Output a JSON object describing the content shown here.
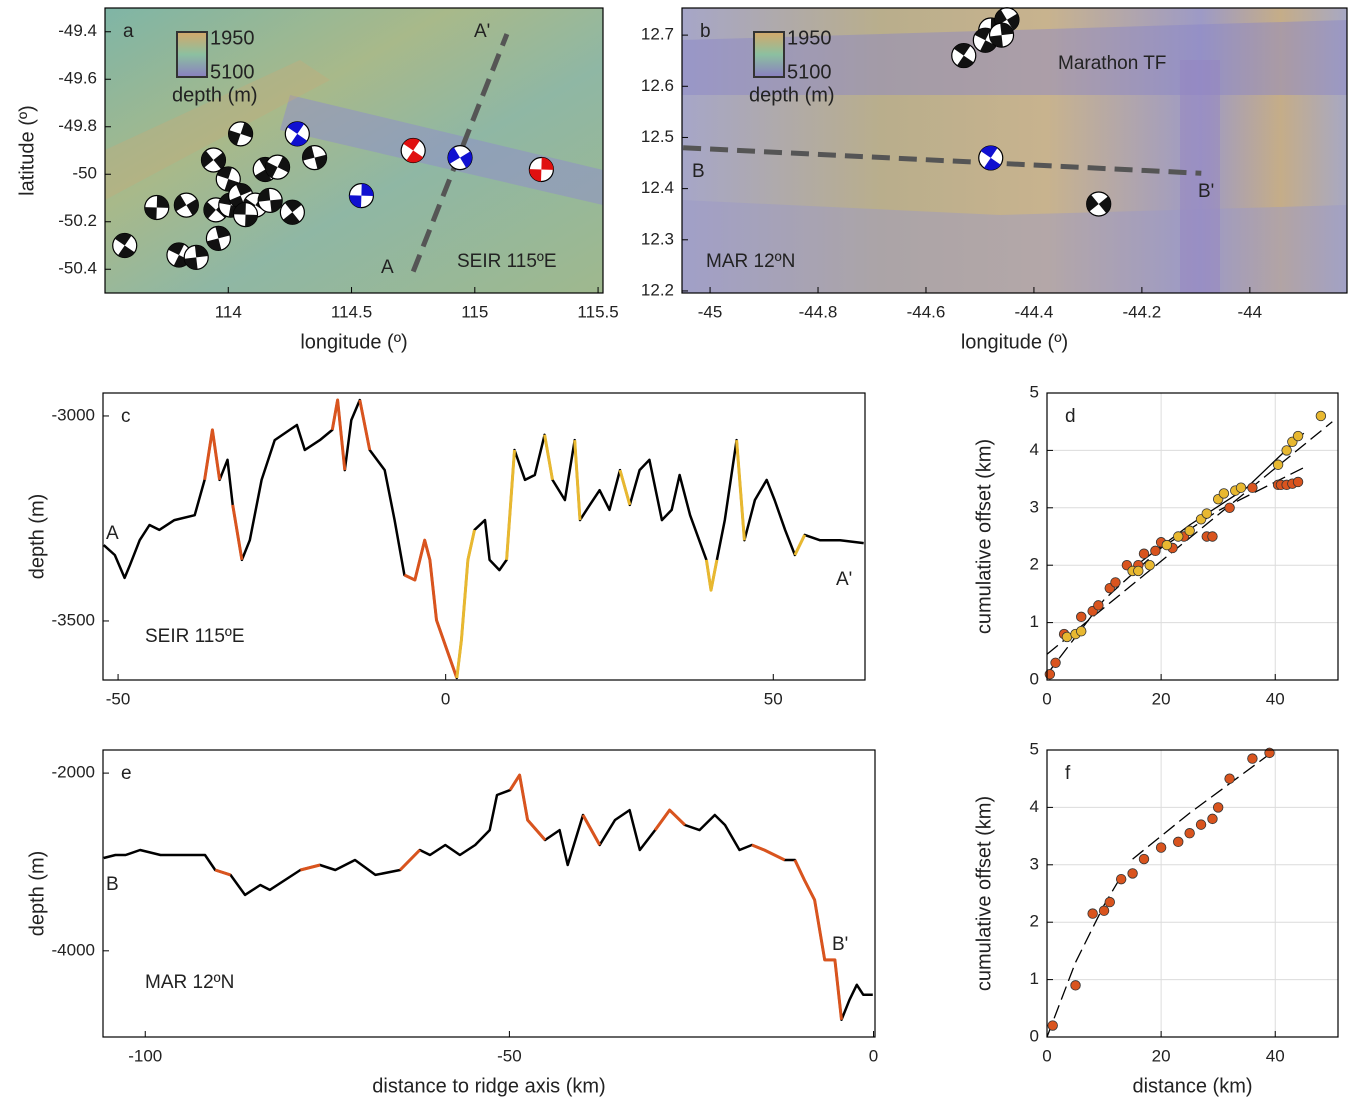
{
  "chart_data": [
    {
      "type": "map",
      "panel_label": "a",
      "xlabel": "longitude (º)",
      "ylabel": "latitude (º)",
      "xlim": [
        113.5,
        115.52
      ],
      "ylim": [
        -50.5,
        -49.3
      ],
      "xticks": [
        114,
        114.5,
        115,
        115.5
      ],
      "yticks": [
        -49.4,
        -49.6,
        -49.8,
        -50,
        -50.2,
        -50.4
      ],
      "colorbar": {
        "ticks": [
          1950,
          5100
        ],
        "title": "depth (m)"
      },
      "annotations": [
        "A'",
        "A",
        "SEIR  115ºE"
      ],
      "profile": {
        "x": [
          114.75,
          115.13
        ],
        "values": [
          -50.41,
          -49.41
        ]
      },
      "series": [
        {
          "color": "#111111",
          "x": [
            113.58,
            113.71,
            113.83,
            113.8,
            113.87,
            113.94,
            114.0,
            113.96,
            113.95,
            114.01,
            114.05,
            114.11,
            114.07,
            114.15,
            114.2,
            114.17,
            114.26,
            114.05,
            114.35
          ],
          "values": [
            -50.3,
            -50.14,
            -50.13,
            -50.34,
            -50.35,
            -49.94,
            -50.02,
            -50.27,
            -50.15,
            -50.13,
            -50.09,
            -50.13,
            -50.17,
            -49.98,
            -49.97,
            -50.11,
            -50.16,
            -49.83,
            -49.93
          ]
        },
        {
          "color": "#1010d0",
          "x": [
            114.28,
            114.54,
            114.94
          ],
          "values": [
            -49.83,
            -50.09,
            -49.93
          ]
        },
        {
          "color": "#e01010",
          "x": [
            114.75,
            115.27
          ],
          "values": [
            -49.9,
            -49.98
          ]
        }
      ]
    },
    {
      "type": "map",
      "panel_label": "b",
      "xlabel": "longitude (º)",
      "xlim": [
        -45.052,
        -43.82
      ],
      "ylim": [
        12.196,
        12.753
      ],
      "xticks": [
        -45,
        -44.8,
        -44.6,
        -44.4,
        -44.2,
        -44
      ],
      "yticks": [
        12.2,
        12.3,
        12.4,
        12.5,
        12.6,
        12.7
      ],
      "colorbar": {
        "ticks": [
          1950,
          5100
        ],
        "title": "depth (m)"
      },
      "annotations": [
        "Marathon TF",
        "B",
        "B'",
        "MAR  12ºN"
      ],
      "profile": {
        "x": [
          -45.05,
          -44.09
        ],
        "values": [
          12.48,
          12.43
        ]
      },
      "series": [
        {
          "color": "#111111",
          "x": [
            -44.53,
            -44.48,
            -44.45,
            -44.49,
            -44.46,
            -44.28
          ],
          "values": [
            12.66,
            12.71,
            12.73,
            12.69,
            12.7,
            12.37
          ]
        },
        {
          "color": "#1010d0",
          "x": [
            -44.48
          ],
          "values": [
            12.46
          ]
        }
      ]
    },
    {
      "type": "line",
      "panel_label": "c",
      "ylabel": "depth (m)",
      "xlim": [
        -52.3,
        64
      ],
      "ylim": [
        -3644,
        -2944
      ],
      "xticks": [
        -50,
        0,
        50
      ],
      "yticks": [
        -3500,
        -3000
      ],
      "annotations": [
        "A",
        "A'",
        "SEIR  115ºE"
      ],
      "series": [
        {
          "color": "#000000",
          "x": [
            -52.2,
            -50.5,
            -49.0,
            -48.2,
            -46.7,
            -45.2,
            -43.7,
            -41.4,
            -38.3,
            -36.8,
            -35.6,
            -34.5,
            -33.3,
            -32.5,
            -31.1,
            -29.9,
            -28.1,
            -26.1,
            -23.8,
            -22.7,
            -21.5,
            -19.2,
            -17.3,
            -16.5,
            -15.4,
            -14.4,
            -13.1,
            -11.6,
            -9.3,
            -7.8,
            -6.3,
            -4.7,
            -3.2,
            -2.4,
            -1.4,
            0.2,
            1.7,
            2.4,
            3.4,
            4.4,
            6.0,
            6.7,
            8.2,
            9.3,
            10.5,
            12.1,
            13.6,
            15.1,
            16.3,
            18.2,
            19.7,
            20.5,
            22.0,
            23.5,
            25.0,
            26.6,
            28.1,
            29.6,
            31.1,
            33.0,
            34.5,
            35.7,
            37.3,
            39.8,
            40.5,
            41.4,
            42.6,
            44.4,
            45.6,
            47.2,
            49.0,
            50.2,
            51.8,
            53.3,
            54.8,
            57.1,
            60.2,
            63.8
          ],
          "values": [
            -3315,
            -3339,
            -3395,
            -3364,
            -3303,
            -3266,
            -3278,
            -3254,
            -3242,
            -3156,
            -3034,
            -3156,
            -3107,
            -3217,
            -3351,
            -3303,
            -3156,
            -3059,
            -3034,
            -3022,
            -3083,
            -3059,
            -3034,
            -2961,
            -3132,
            -3010,
            -2961,
            -3083,
            -3132,
            -3254,
            -3388,
            -3400,
            -3303,
            -3351,
            -3498,
            -3571,
            -3639,
            -3547,
            -3351,
            -3278,
            -3254,
            -3351,
            -3376,
            -3351,
            -3083,
            -3156,
            -3144,
            -3046,
            -3156,
            -3205,
            -3059,
            -3254,
            -3217,
            -3181,
            -3229,
            -3132,
            -3217,
            -3132,
            -3107,
            -3254,
            -3229,
            -3144,
            -3242,
            -3351,
            -3425,
            -3351,
            -3254,
            -3059,
            -3303,
            -3205,
            -3156,
            -3205,
            -3278,
            -3339,
            -3290,
            -3303,
            -3303,
            -3310
          ]
        },
        {
          "color": "#d9541e",
          "x": [
            -36.8,
            -35.6,
            -34.5
          ],
          "values": [
            -3156,
            -3034,
            -3156
          ]
        },
        {
          "color": "#d9541e",
          "x": [
            -32.5,
            -31.1
          ],
          "values": [
            -3217,
            -3351
          ]
        },
        {
          "color": "#d9541e",
          "x": [
            -17.3,
            -16.5,
            -15.4
          ],
          "values": [
            -3034,
            -2961,
            -3132
          ]
        },
        {
          "color": "#d9541e",
          "x": [
            -13.1,
            -11.6
          ],
          "values": [
            -2961,
            -3083
          ]
        },
        {
          "color": "#d9541e",
          "x": [
            -6.3,
            -4.7,
            -3.2,
            -2.4,
            -1.4,
            0.2,
            1.7
          ],
          "values": [
            -3388,
            -3400,
            -3303,
            -3351,
            -3498,
            -3571,
            -3639
          ]
        },
        {
          "color": "#e8b830",
          "x": [
            1.7,
            2.4,
            3.4,
            4.4
          ],
          "values": [
            -3639,
            -3547,
            -3351,
            -3278
          ]
        },
        {
          "color": "#e8b830",
          "x": [
            9.3,
            10.5
          ],
          "values": [
            -3351,
            -3083
          ]
        },
        {
          "color": "#e8b830",
          "x": [
            15.1,
            16.3
          ],
          "values": [
            -3046,
            -3156
          ]
        },
        {
          "color": "#e8b830",
          "x": [
            19.7,
            20.5
          ],
          "values": [
            -3059,
            -3254
          ]
        },
        {
          "color": "#e8b830",
          "x": [
            26.6,
            28.1
          ],
          "values": [
            -3132,
            -3217
          ]
        },
        {
          "color": "#e8b830",
          "x": [
            39.8,
            40.5,
            41.4
          ],
          "values": [
            -3351,
            -3425,
            -3351
          ]
        },
        {
          "color": "#e8b830",
          "x": [
            44.4,
            45.6
          ],
          "values": [
            -3059,
            -3303
          ]
        },
        {
          "color": "#e8b830",
          "x": [
            53.3,
            54.8
          ],
          "values": [
            -3339,
            -3290
          ]
        }
      ]
    },
    {
      "type": "scatter",
      "panel_label": "d",
      "ylabel": "cumulative offset (km)",
      "grid": true,
      "xlim": [
        0,
        51
      ],
      "ylim": [
        0,
        5
      ],
      "xticks": [
        0,
        20,
        40
      ],
      "yticks": [
        0,
        1,
        2,
        3,
        4,
        5
      ],
      "series": [
        {
          "color": "#d9541e",
          "x": [
            0.5,
            1.5,
            3,
            6,
            8,
            9,
            11,
            12,
            14,
            16,
            17,
            19,
            20,
            22,
            24,
            28,
            29,
            32,
            36,
            40.5,
            41,
            42,
            43,
            44
          ],
          "values": [
            0.1,
            0.3,
            0.8,
            1.1,
            1.2,
            1.3,
            1.6,
            1.7,
            2.0,
            2.0,
            2.2,
            2.25,
            2.4,
            2.3,
            2.5,
            2.5,
            2.5,
            3.0,
            3.35,
            3.4,
            3.4,
            3.4,
            3.42,
            3.45
          ]
        },
        {
          "color": "#e8b830",
          "x": [
            3.5,
            5,
            6,
            15,
            16,
            18,
            21,
            23,
            25,
            27,
            28,
            30,
            31,
            33,
            34,
            40.5,
            42,
            43,
            44,
            48
          ],
          "values": [
            0.75,
            0.8,
            0.85,
            1.9,
            1.9,
            2.0,
            2.35,
            2.5,
            2.6,
            2.8,
            2.9,
            3.15,
            3.25,
            3.3,
            3.35,
            3.75,
            4.0,
            4.15,
            4.25,
            4.6
          ]
        }
      ],
      "fits": [
        {
          "dashed": true,
          "x": [
            0,
            50
          ],
          "values": [
            0.45,
            4.5
          ]
        },
        {
          "dashed": true,
          "x": [
            0,
            10,
            20,
            30,
            45
          ],
          "values": [
            0.1,
            1.4,
            2.3,
            2.95,
            3.7
          ]
        },
        {
          "dashed": false,
          "x": [
            15,
            25,
            35,
            45
          ],
          "values": [
            1.95,
            2.7,
            3.35,
            4.3
          ]
        }
      ]
    },
    {
      "type": "line",
      "panel_label": "e",
      "ylabel": "depth (m)",
      "xlabel": "distance to ridge axis (km)",
      "xlim": [
        -105.8,
        0.2
      ],
      "ylim": [
        -4970,
        -1740
      ],
      "xticks": [
        -100,
        -50,
        0
      ],
      "yticks": [
        -4000,
        -2000
      ],
      "annotations": [
        "B",
        "B'",
        "MAR  12ºN"
      ],
      "series": [
        {
          "color": "#000000",
          "x": [
            -105.7,
            -104.1,
            -102.7,
            -100.7,
            -97.9,
            -95.2,
            -91.8,
            -90.4,
            -88.3,
            -86.3,
            -84.2,
            -82.9,
            -78.7,
            -76.0,
            -73.9,
            -71.2,
            -68.4,
            -65.0,
            -62.3,
            -60.9,
            -58.8,
            -56.8,
            -54.7,
            -52.7,
            -51.7,
            -49.9,
            -48.6,
            -47.5,
            -45.1,
            -43.1,
            -42.0,
            -39.9,
            -37.6,
            -35.5,
            -33.5,
            -32.1,
            -30.0,
            -28.0,
            -25.9,
            -23.9,
            -21.8,
            -20.4,
            -18.4,
            -16.7,
            -15.0,
            -12.2,
            -10.8,
            -9.5,
            -8.1,
            -6.7,
            -5.3,
            -4.4,
            -3.3,
            -2.3,
            -1.4,
            -0.1
          ],
          "values": [
            -2955,
            -2922,
            -2922,
            -2865,
            -2922,
            -2922,
            -2922,
            -3090,
            -3146,
            -3371,
            -3259,
            -3315,
            -3090,
            -3034,
            -3090,
            -2978,
            -3146,
            -3090,
            -2865,
            -2922,
            -2809,
            -2922,
            -2809,
            -2641,
            -2247,
            -2191,
            -2022,
            -2528,
            -2753,
            -2641,
            -3034,
            -2472,
            -2809,
            -2528,
            -2416,
            -2865,
            -2641,
            -2416,
            -2584,
            -2641,
            -2472,
            -2584,
            -2865,
            -2809,
            -2865,
            -2978,
            -2978,
            -3203,
            -3427,
            -4102,
            -4102,
            -4776,
            -4551,
            -4383,
            -4495,
            -4495
          ]
        },
        {
          "color": "#d9541e",
          "x": [
            -90.4,
            -88.3
          ],
          "values": [
            -3090,
            -3146
          ]
        },
        {
          "color": "#d9541e",
          "x": [
            -78.7,
            -76.0
          ],
          "values": [
            -3090,
            -3034
          ]
        },
        {
          "color": "#d9541e",
          "x": [
            -65.0,
            -62.3
          ],
          "values": [
            -3090,
            -2865
          ]
        },
        {
          "color": "#d9541e",
          "x": [
            -49.9,
            -48.6,
            -47.5,
            -45.1
          ],
          "values": [
            -2191,
            -2022,
            -2528,
            -2753
          ]
        },
        {
          "color": "#d9541e",
          "x": [
            -39.9,
            -37.6
          ],
          "values": [
            -2472,
            -2809
          ]
        },
        {
          "color": "#d9541e",
          "x": [
            -30.0,
            -28.0,
            -25.9
          ],
          "values": [
            -2641,
            -2416,
            -2584
          ]
        },
        {
          "color": "#d9541e",
          "x": [
            -16.7,
            -15.0,
            -12.2
          ],
          "values": [
            -2809,
            -2865,
            -2978
          ]
        },
        {
          "color": "#d9541e",
          "x": [
            -10.8,
            -9.5,
            -8.1,
            -6.7,
            -5.3,
            -4.4
          ],
          "values": [
            -2978,
            -3203,
            -3427,
            -4102,
            -4102,
            -4776
          ]
        }
      ]
    },
    {
      "type": "scatter",
      "panel_label": "f",
      "ylabel": "cumulative offset (km)",
      "xlabel": "distance (km)",
      "grid": true,
      "xlim": [
        0,
        51
      ],
      "ylim": [
        0,
        5
      ],
      "xticks": [
        0,
        20,
        40
      ],
      "yticks": [
        0,
        1,
        2,
        3,
        4,
        5
      ],
      "series": [
        {
          "color": "#d9541e",
          "x": [
            1,
            5,
            8,
            10,
            11,
            13,
            15,
            17,
            20,
            23,
            25,
            27,
            29,
            30,
            32,
            36,
            39
          ],
          "values": [
            0.2,
            0.9,
            2.15,
            2.2,
            2.35,
            2.75,
            2.85,
            3.1,
            3.3,
            3.4,
            3.55,
            3.7,
            3.8,
            4.0,
            4.5,
            4.85,
            4.95
          ]
        }
      ],
      "fits": [
        {
          "dashed": true,
          "x": [
            0,
            5,
            10,
            13
          ],
          "values": [
            0,
            1.3,
            2.3,
            2.8
          ]
        },
        {
          "dashed": true,
          "x": [
            15,
            25,
            40
          ],
          "values": [
            3.1,
            3.9,
            5.0
          ]
        }
      ]
    }
  ]
}
